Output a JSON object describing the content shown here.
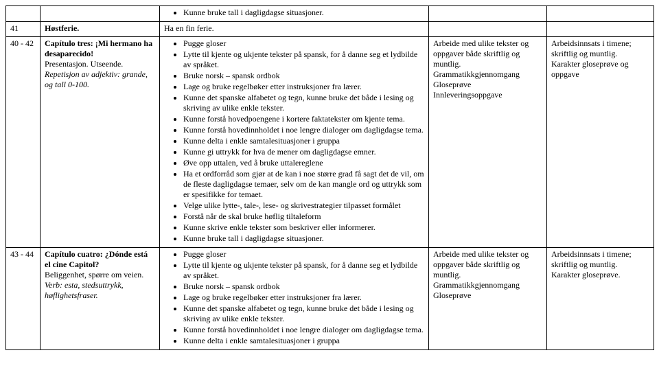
{
  "rows": {
    "r0": {
      "col3_bullet": "Kunne bruke tall i dagligdagse situasjoner."
    },
    "r1": {
      "week": "41",
      "topic_bold": "Høstferie.",
      "col3": "Ha en fin ferie."
    },
    "r2": {
      "week": "40 - 42",
      "topic_bold": "Capítulo tres: ¡Mi hermano ha desaparecido!",
      "topic_plain": "Presentasjon. Utseende.",
      "topic_italic": "Repetisjon av adjektiv: grande, og tall 0-100.",
      "col3": [
        "Pugge gloser",
        "Lytte til kjente og ukjente tekster på spansk, for å danne seg et lydbilde av språket.",
        "Bruke norsk – spansk ordbok",
        "Lage og bruke regelbøker etter instruksjoner fra lærer.",
        "Kunne det spanske alfabetet og tegn, kunne bruke det både i lesing og skriving av ulike enkle tekster.",
        "Kunne forstå hovedpoengene i kortere faktatekster om kjente tema.",
        "Kunne forstå hovedinnholdet i noe lengre dialoger om dagligdagse tema.",
        "Kunne delta i enkle samtalesituasjoner i gruppa",
        "Kunne gi uttrykk for hva de mener om dagligdagse emner.",
        "Øve opp uttalen, ved å bruke uttalereglene",
        "Ha et ordforråd som gjør at de kan i noe større grad få sagt det de vil, om de fleste dagligdagse temaer, selv om de kan mangle ord og uttrykk som er spesifikke for temaet.",
        "Velge ulike lytte-, tale-, lese- og skrivestrategier tilpasset formålet",
        "Forstå når de skal bruke høflig tiltaleform",
        "Kunne skrive enkle tekster som beskriver eller informerer.",
        "Kunne bruke tall i dagligdagse situasjoner."
      ],
      "col4": "Arbeide med ulike tekster og oppgaver både skriftlig og muntlig.\nGrammatikkgjennomgang\nGloseprøve\nInnleveringsoppgave",
      "col5": "Arbeidsinnsats i timene; skriftlig og muntlig.\nKarakter gloseprøve og oppgave"
    },
    "r3": {
      "week": "43 - 44",
      "topic_bold": "Capítulo cuatro: ¿Dónde está el cine Capitol?",
      "topic_plain": "Beliggenhet, spørre om veien.",
      "topic_italic": "Verb: esta, stedsuttrykk, høflighetsfraser.",
      "col3": [
        "Pugge gloser",
        "Lytte til kjente og ukjente tekster på spansk, for å danne seg et lydbilde av språket.",
        "Bruke norsk – spansk ordbok",
        "Lage og bruke regelbøker etter instruksjoner fra lærer.",
        "Kunne det spanske alfabetet og tegn, kunne bruke det både i lesing og skriving av ulike enkle tekster.",
        "Kunne forstå hovedinnholdet i noe lengre dialoger om dagligdagse tema.",
        "Kunne delta i enkle samtalesituasjoner i gruppa"
      ],
      "col4": "Arbeide med ulike tekster og oppgaver både skriftlig og muntlig.\nGrammatikkgjennomgang\nGloseprøve",
      "col5": "Arbeidsinnsats i timene; skriftlig og muntlig.\nKarakter gloseprøve."
    }
  }
}
